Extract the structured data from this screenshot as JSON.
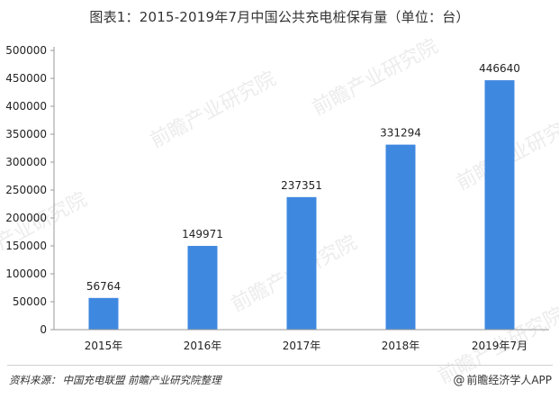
{
  "page": {
    "title": "图表1：2015-2019年7月中国公共充电桩保有量（单位：台）",
    "source_label": "资料来源：",
    "source_value": "中国充电联盟 前瞻产业研究院整理",
    "credit_symbol": "@",
    "credit_text": "前瞻经济学人APP",
    "watermark_text": "前瞻产业研究院"
  },
  "colors": {
    "bar": "#3f88e0",
    "axis": "#9a9a9a",
    "text": "#222222",
    "watermark": "#c8c8c8"
  },
  "chart_data": {
    "type": "bar",
    "title": "图表1：2015-2019年7月中国公共充电桩保有量（单位：台）",
    "categories": [
      "2015年",
      "2016年",
      "2017年",
      "2018年",
      "2019年7月"
    ],
    "values": [
      56764,
      149971,
      237351,
      331294,
      446640
    ],
    "ylim": [
      0,
      500000
    ],
    "yticks": [
      0,
      50000,
      100000,
      150000,
      200000,
      250000,
      300000,
      350000,
      400000,
      450000,
      500000
    ],
    "xlabel": "",
    "ylabel": "",
    "grid": false,
    "legend": "none",
    "data_labels": true
  }
}
